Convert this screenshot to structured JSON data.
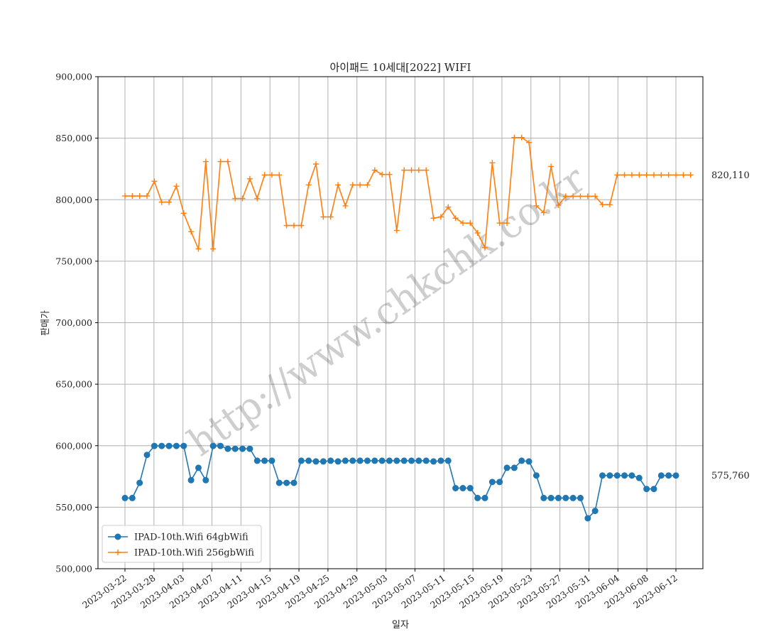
{
  "chart_data": {
    "type": "line",
    "title": "아이패드 10세대[2022] WIFI",
    "xlabel": "일자",
    "ylabel": "판매가",
    "ylim": [
      500000,
      900000
    ],
    "yticks": [
      "500,000",
      "550,000",
      "600,000",
      "650,000",
      "700,000",
      "750,000",
      "800,000",
      "850,000",
      "900,000"
    ],
    "grid": true,
    "legend_position": "lower-left",
    "xtick_labels": [
      "2023-03-22",
      "2023-03-28",
      "2023-04-03",
      "2023-04-07",
      "2023-04-11",
      "2023-04-15",
      "2023-04-19",
      "2023-04-25",
      "2023-04-29",
      "2023-05-03",
      "2023-05-07",
      "2023-05-11",
      "2023-05-15",
      "2023-05-19",
      "2023-05-23",
      "2023-05-27",
      "2023-05-31",
      "2023-06-04",
      "2023-06-08",
      "2023-06-12"
    ],
    "watermark": "http://www.chkchk.co.kr",
    "series": [
      {
        "name": "IPAD-10th.Wifi 64gbWifi",
        "color": "#1f77b4",
        "marker": "circle",
        "end_label": "575,760",
        "values": [
          557500,
          557500,
          569800,
          592500,
          599800,
          599800,
          599800,
          599800,
          599800,
          572000,
          582000,
          572000,
          599800,
          599800,
          597500,
          597500,
          597500,
          597500,
          587800,
          587800,
          587800,
          569800,
          569800,
          569800,
          587800,
          587800,
          587200,
          587200,
          587800,
          587200,
          587800,
          587800,
          587800,
          587800,
          587800,
          587800,
          587800,
          587800,
          587800,
          587800,
          587800,
          587800,
          587200,
          587800,
          587800,
          565500,
          565500,
          565500,
          557500,
          557500,
          570500,
          570500,
          582000,
          582000,
          587800,
          587200,
          575760,
          557500,
          557500,
          557500,
          557500,
          557500,
          557500,
          541000,
          547000,
          575760,
          575760,
          575760,
          575760,
          575760,
          573800,
          564800,
          564800,
          575760,
          575760,
          575760
        ]
      },
      {
        "name": "IPAD-10th.Wifi 256gbWifi",
        "color": "#ff7f0e",
        "marker": "plus",
        "end_label": "820,110",
        "values": [
          803000,
          803000,
          803000,
          803000,
          815000,
          798000,
          798000,
          811000,
          789000,
          774000,
          760000,
          831000,
          760000,
          831000,
          831000,
          801000,
          801000,
          817000,
          801000,
          820110,
          820110,
          820110,
          779000,
          779000,
          779000,
          812000,
          829000,
          786000,
          786000,
          812000,
          795000,
          812000,
          812000,
          812000,
          824000,
          820500,
          820500,
          775000,
          824000,
          824000,
          824000,
          824000,
          785000,
          786000,
          794000,
          785000,
          781000,
          781000,
          773000,
          761000,
          830000,
          781000,
          781000,
          850500,
          850500,
          846500,
          795000,
          789500,
          827000,
          795500,
          802800,
          802800,
          802800,
          802800,
          802800,
          796000,
          796000,
          820110,
          820110,
          820110,
          820110,
          820110,
          820110,
          820110,
          820110,
          820110,
          820110,
          820110
        ]
      }
    ]
  }
}
